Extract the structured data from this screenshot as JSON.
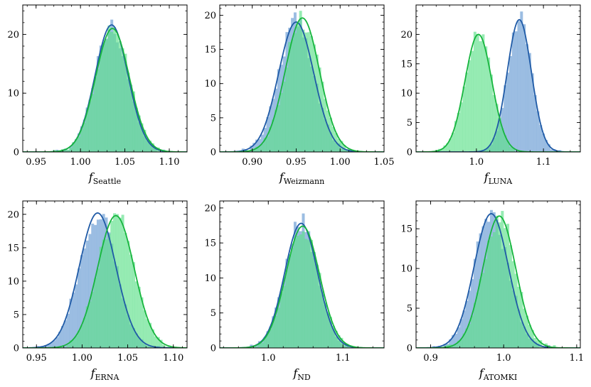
{
  "colors": {
    "blue_fill": "#7aa7d8",
    "blue_line": "#1f5aa6",
    "green_fill": "#5ee08a",
    "green_line": "#17b53e",
    "frame": "#000000"
  },
  "chart_data": [
    {
      "type": "histogram+kde",
      "xlabel": "f",
      "xlabel_sub": "Seattle",
      "xlim": [
        0.935,
        1.12
      ],
      "ylim": [
        0,
        25
      ],
      "xticks": [
        0.95,
        1.0,
        1.05,
        1.1
      ],
      "xtick_labels": [
        "0.95",
        "1.00",
        "1.05",
        "1.10"
      ],
      "yticks": [
        0,
        10,
        20
      ],
      "ytick_labels": [
        "0",
        "10",
        "20"
      ],
      "series": [
        {
          "name": "blue",
          "mean": 1.035,
          "sd": 0.0185,
          "peak": 21.6
        },
        {
          "name": "green",
          "mean": 1.036,
          "sd": 0.019,
          "peak": 21.0
        }
      ]
    },
    {
      "type": "histogram+kde",
      "xlabel": "f",
      "xlabel_sub": "Weizmann",
      "xlim": [
        0.863,
        1.05
      ],
      "ylim": [
        0,
        21.5
      ],
      "xticks": [
        0.9,
        0.95,
        1.0,
        1.05
      ],
      "xtick_labels": [
        "0.90",
        "0.95",
        "1.00",
        "1.05"
      ],
      "yticks": [
        0,
        5,
        10,
        15,
        20
      ],
      "ytick_labels": [
        "0",
        "5",
        "10",
        "15",
        "20"
      ],
      "series": [
        {
          "name": "blue",
          "mean": 0.95,
          "sd": 0.02,
          "peak": 19.0
        },
        {
          "name": "green",
          "mean": 0.957,
          "sd": 0.0195,
          "peak": 19.6
        }
      ]
    },
    {
      "type": "histogram+kde",
      "xlabel": "f",
      "xlabel_sub": "LUNA",
      "xlim": [
        0.91,
        1.155
      ],
      "ylim": [
        0,
        25
      ],
      "xticks": [
        1.0,
        1.1
      ],
      "xtick_labels": [
        "1.0",
        "1.1"
      ],
      "yticks": [
        0,
        5,
        10,
        15,
        20
      ],
      "ytick_labels": [
        "0",
        "5",
        "10",
        "15",
        "20"
      ],
      "series": [
        {
          "name": "blue",
          "mean": 1.064,
          "sd": 0.018,
          "peak": 22.5
        },
        {
          "name": "green",
          "mean": 1.003,
          "sd": 0.02,
          "peak": 20.0
        }
      ]
    },
    {
      "type": "histogram+kde",
      "xlabel": "f",
      "xlabel_sub": "ERNA",
      "xlim": [
        0.935,
        1.115
      ],
      "ylim": [
        0,
        22
      ],
      "xticks": [
        0.95,
        1.0,
        1.05,
        1.1
      ],
      "xtick_labels": [
        "0.95",
        "1.00",
        "1.05",
        "1.10"
      ],
      "yticks": [
        0,
        5,
        10,
        15,
        20
      ],
      "ytick_labels": [
        "0",
        "5",
        "10",
        "15",
        "20"
      ],
      "series": [
        {
          "name": "blue",
          "mean": 1.017,
          "sd": 0.02,
          "peak": 20.2
        },
        {
          "name": "green",
          "mean": 1.037,
          "sd": 0.02,
          "peak": 19.8
        }
      ]
    },
    {
      "type": "histogram+kde",
      "xlabel": "f",
      "xlabel_sub": "ND",
      "xlim": [
        0.935,
        1.155
      ],
      "ylim": [
        0,
        21
      ],
      "xticks": [
        1.0,
        1.1
      ],
      "xtick_labels": [
        "1.0",
        "1.1"
      ],
      "yticks": [
        0,
        5,
        10,
        15,
        20
      ],
      "ytick_labels": [
        "0",
        "5",
        "10",
        "15",
        "20"
      ],
      "series": [
        {
          "name": "blue",
          "mean": 1.044,
          "sd": 0.022,
          "peak": 17.8
        },
        {
          "name": "green",
          "mean": 1.046,
          "sd": 0.0225,
          "peak": 17.4
        }
      ]
    },
    {
      "type": "histogram+kde",
      "xlabel": "f",
      "xlabel_sub": "ATOMKI",
      "xlim": [
        0.88,
        1.105
      ],
      "ylim": [
        0,
        18.5
      ],
      "xticks": [
        0.9,
        1.0,
        1.1
      ],
      "xtick_labels": [
        "0.9",
        "1.0",
        "1.1"
      ],
      "yticks": [
        0,
        5,
        10,
        15
      ],
      "ytick_labels": [
        "0",
        "5",
        "10",
        "15"
      ],
      "series": [
        {
          "name": "blue",
          "mean": 0.983,
          "sd": 0.0235,
          "peak": 16.9
        },
        {
          "name": "green",
          "mean": 0.994,
          "sd": 0.0225,
          "peak": 16.6
        }
      ]
    }
  ]
}
